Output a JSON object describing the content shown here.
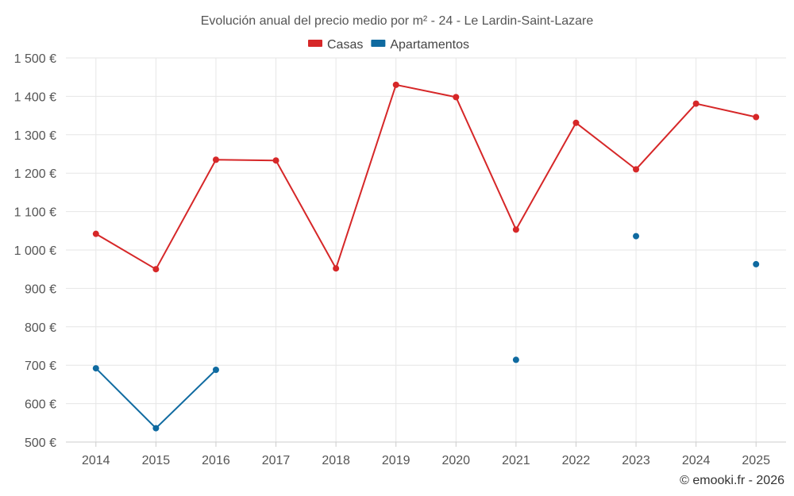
{
  "chart_data": {
    "type": "line",
    "title": "Evolución anual del precio medio por m² - 24 - Le Lardin-Saint-Lazare",
    "categories": [
      "2014",
      "2015",
      "2016",
      "2017",
      "2018",
      "2019",
      "2020",
      "2021",
      "2022",
      "2023",
      "2024",
      "2025"
    ],
    "ylim": [
      500,
      1500
    ],
    "yticks": [
      500,
      600,
      700,
      800,
      900,
      1000,
      1100,
      1200,
      1300,
      1400,
      1500
    ],
    "ytick_labels": [
      "500 €",
      "600 €",
      "700 €",
      "800 €",
      "900 €",
      "1 000 €",
      "1 100 €",
      "1 200 €",
      "1 300 €",
      "1 400 €",
      "1 500 €"
    ],
    "grid": true,
    "legend_position": "top-center",
    "series": [
      {
        "name": "Casas",
        "color": "#d62728",
        "values": [
          1042,
          950,
          1235,
          1233,
          952,
          1430,
          1398,
          1053,
          1331,
          1210,
          1381,
          1346
        ]
      },
      {
        "name": "Apartamentos",
        "color": "#0f6aa0",
        "values": [
          692,
          536,
          688,
          null,
          null,
          null,
          null,
          714,
          null,
          1036,
          null,
          963
        ]
      }
    ],
    "credit": "© emooki.fr - 2026"
  }
}
